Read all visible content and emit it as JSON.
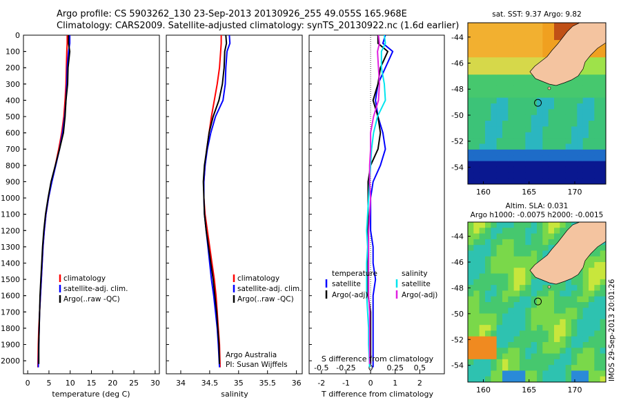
{
  "header": {
    "line1": "Argo profile: CS 5903262_130 23-Sep-2013 20130926_255 49.055S 165.968E",
    "line2": "Climatology: CARS2009. Satellite-adjusted climatology: synTS_20130922.nc (1.6d earlier)"
  },
  "colors": {
    "climatology": "#ff0000",
    "satellite": "#0000ff",
    "argo": "#000000",
    "cyan": "#00e5ee",
    "magenta": "#e020e0",
    "land": "#f4c4a0"
  },
  "credit": {
    "line1": "Argo Australia",
    "line2": "PI: Susan Wijffels"
  },
  "side_stamp": "IMOS 29-Sep-2013 20:01:26",
  "chart_data": [
    {
      "type": "line",
      "id": "temperature",
      "xlabel": "temperature (deg C)",
      "xlim": [
        -1,
        31
      ],
      "ylim": [
        2080,
        0
      ],
      "xticks": [
        0,
        5,
        10,
        15,
        20,
        25,
        30
      ],
      "yticks": [
        0,
        100,
        200,
        300,
        400,
        500,
        600,
        700,
        800,
        900,
        1000,
        1100,
        1200,
        1300,
        1400,
        1500,
        1600,
        1700,
        1800,
        1900,
        2000
      ],
      "legend": [
        "climatology",
        "satellite-adj. clim.",
        "Argo(..raw -QC)"
      ],
      "series": [
        {
          "name": "climatology",
          "color": "#ff0000",
          "x": [
            9.3,
            9.3,
            9.2,
            9.1,
            9.0,
            8.8,
            8.5,
            8.0,
            7.3,
            6.5,
            5.6,
            4.9,
            4.3,
            3.9,
            3.6,
            3.4,
            3.2,
            3.0,
            2.8,
            2.6,
            2.5,
            2.4
          ],
          "y": [
            0,
            50,
            100,
            200,
            300,
            400,
            500,
            600,
            700,
            800,
            900,
            1000,
            1100,
            1200,
            1300,
            1400,
            1500,
            1600,
            1700,
            1800,
            1900,
            2040
          ]
        },
        {
          "name": "satellite-adj. clim.",
          "color": "#0000ff",
          "x": [
            9.9,
            9.9,
            9.6,
            9.3,
            9.2,
            9.0,
            8.7,
            8.2,
            7.5,
            6.6,
            5.7,
            4.9,
            4.3,
            3.9,
            3.6,
            3.4,
            3.2,
            3.0,
            2.8,
            2.7,
            2.6,
            2.5
          ],
          "y": [
            0,
            50,
            100,
            200,
            300,
            400,
            500,
            600,
            700,
            800,
            900,
            1000,
            1100,
            1200,
            1300,
            1400,
            1500,
            1600,
            1700,
            1800,
            1900,
            2040
          ]
        },
        {
          "name": "Argo(..raw -QC)",
          "color": "#000000",
          "x": [
            9.6,
            9.6,
            9.9,
            9.5,
            9.4,
            9.0,
            8.8,
            8.4,
            7.5,
            6.5,
            5.5,
            4.8,
            4.2,
            3.8,
            3.5,
            3.3,
            3.1,
            2.9,
            2.8,
            2.7,
            2.6,
            2.6
          ],
          "y": [
            0,
            50,
            100,
            200,
            300,
            400,
            500,
            600,
            700,
            800,
            900,
            1000,
            1100,
            1200,
            1300,
            1400,
            1500,
            1600,
            1700,
            1800,
            1900,
            2020
          ]
        }
      ]
    },
    {
      "type": "line",
      "id": "salinity",
      "xlabel": "salinity",
      "xlim": [
        33.75,
        36.1
      ],
      "ylim": [
        2080,
        0
      ],
      "xticks": [
        34,
        34.5,
        35,
        35.5,
        36
      ],
      "legend": [
        "climatology",
        "satellite-adj. clim.",
        "Argo(..raw -QC)"
      ],
      "series": [
        {
          "name": "climatology",
          "color": "#ff0000",
          "x": [
            34.7,
            34.7,
            34.69,
            34.67,
            34.63,
            34.58,
            34.53,
            34.49,
            34.45,
            34.42,
            34.4,
            34.4,
            34.42,
            34.46,
            34.5,
            34.54,
            34.58,
            34.61,
            34.63,
            34.65,
            34.67,
            34.68
          ],
          "y": [
            0,
            50,
            100,
            200,
            300,
            400,
            500,
            600,
            700,
            800,
            900,
            1000,
            1100,
            1200,
            1300,
            1400,
            1500,
            1600,
            1700,
            1800,
            1900,
            2040
          ]
        },
        {
          "name": "satellite-adj. clim.",
          "color": "#0000ff",
          "x": [
            34.84,
            34.85,
            34.8,
            34.78,
            34.77,
            34.73,
            34.6,
            34.52,
            34.46,
            34.42,
            34.4,
            34.4,
            34.41,
            34.44,
            34.47,
            34.5,
            34.53,
            34.57,
            34.6,
            34.63,
            34.65,
            34.67
          ],
          "y": [
            0,
            50,
            100,
            200,
            300,
            400,
            500,
            600,
            700,
            800,
            900,
            1000,
            1100,
            1200,
            1300,
            1400,
            1500,
            1600,
            1700,
            1800,
            1900,
            2040
          ]
        },
        {
          "name": "Argo(..raw -QC)",
          "color": "#000000",
          "x": [
            34.78,
            34.79,
            34.76,
            34.75,
            34.72,
            34.66,
            34.56,
            34.49,
            34.45,
            34.41,
            34.39,
            34.4,
            34.41,
            34.44,
            34.48,
            34.52,
            34.56,
            34.59,
            34.62,
            34.64,
            34.66,
            34.67
          ],
          "y": [
            0,
            50,
            100,
            200,
            300,
            400,
            500,
            600,
            700,
            800,
            900,
            1000,
            1100,
            1200,
            1300,
            1400,
            1500,
            1600,
            1700,
            1800,
            1900,
            2020
          ]
        }
      ]
    },
    {
      "type": "line",
      "id": "differences",
      "xlabel": "T difference from climatology",
      "xlabel2": "S difference from climatology",
      "xlim": [
        -2.5,
        3
      ],
      "ylim": [
        2080,
        0
      ],
      "xticks": [
        -2,
        -1,
        0,
        1,
        2
      ],
      "xticks2": [
        -0.5,
        -0.25,
        0,
        0.25,
        0.5
      ],
      "legend_titles": [
        "temperature",
        "salinity"
      ],
      "legend_left": [
        "satellite",
        "Argo(-adj)"
      ],
      "legend_right": [
        "satellite",
        "Argo(-adj)"
      ],
      "series": [
        {
          "name": "temperature satellite",
          "color": "#0000ff",
          "x": [
            0.6,
            0.5,
            0.9,
            0.6,
            0.3,
            0.2,
            0.3,
            0.5,
            0.6,
            0.4,
            0.1,
            0.0,
            0.0,
            0.0,
            0.1,
            0.1,
            0.2,
            0.1,
            0.1,
            0.1,
            0.1,
            0.1
          ],
          "y": [
            0,
            50,
            100,
            200,
            300,
            400,
            500,
            600,
            700,
            800,
            900,
            1000,
            1100,
            1200,
            1300,
            1400,
            1500,
            1600,
            1700,
            1800,
            1900,
            2040
          ]
        },
        {
          "name": "temperature Argo(-adj)",
          "color": "#000000",
          "x": [
            0.3,
            0.3,
            0.7,
            0.4,
            0.3,
            0.1,
            0.3,
            0.4,
            0.3,
            0.0,
            -0.1,
            -0.1,
            -0.1,
            -0.1,
            -0.1,
            -0.1,
            -0.1,
            -0.1,
            -0.0,
            -0.0,
            -0.0,
            0.0
          ],
          "y": [
            0,
            50,
            100,
            200,
            300,
            400,
            500,
            600,
            700,
            800,
            900,
            1000,
            1100,
            1200,
            1300,
            1400,
            1500,
            1600,
            1700,
            1800,
            1900,
            2020
          ]
        },
        {
          "name": "salinity satellite",
          "color": "#00e5ee",
          "x": [
            0.14,
            0.15,
            0.11,
            0.11,
            0.14,
            0.15,
            0.07,
            0.03,
            0.01,
            0.0,
            -0.01,
            -0.02,
            -0.03,
            -0.04,
            -0.03,
            -0.04,
            -0.04,
            -0.04,
            -0.03,
            -0.02,
            -0.02,
            -0.01
          ],
          "y": [
            0,
            50,
            100,
            200,
            300,
            400,
            500,
            600,
            700,
            800,
            900,
            1000,
            1100,
            1200,
            1300,
            1400,
            1500,
            1600,
            1700,
            1800,
            1900,
            2040
          ]
        },
        {
          "name": "salinity Argo(-adj)",
          "color": "#e020e0",
          "x": [
            0.08,
            0.09,
            0.07,
            0.08,
            0.09,
            0.08,
            0.03,
            0.0,
            0.0,
            -0.01,
            -0.01,
            0.0,
            -0.01,
            -0.02,
            -0.02,
            -0.02,
            -0.02,
            -0.02,
            -0.01,
            -0.01,
            -0.01,
            -0.01
          ],
          "y": [
            0,
            50,
            100,
            200,
            300,
            400,
            500,
            600,
            700,
            800,
            900,
            1000,
            1100,
            1200,
            1300,
            1400,
            1500,
            1600,
            1700,
            1800,
            1900,
            2020
          ]
        }
      ]
    },
    {
      "type": "heatmap",
      "id": "sst_map",
      "title": "sat. SST: 9.37 Argo: 9.82",
      "xlim": [
        158.3,
        173.4
      ],
      "ylim": [
        -55.3,
        -42.9
      ],
      "xticks": [
        160,
        165,
        170
      ],
      "yticks": [
        -44,
        -46,
        -48,
        -50,
        -52,
        -54
      ],
      "float_position": [
        165.968,
        -49.055
      ]
    },
    {
      "type": "heatmap",
      "id": "sla_map",
      "title": "Altim. SLA: 0.031",
      "title2": "Argo h1000: -0.0075 h2000: -0.0015",
      "xlim": [
        158.3,
        173.4
      ],
      "ylim": [
        -55.3,
        -42.9
      ],
      "xticks": [
        160,
        165,
        170
      ],
      "yticks": [
        -44,
        -46,
        -48,
        -50,
        -52,
        -54
      ],
      "float_position": [
        165.968,
        -49.055
      ]
    }
  ]
}
